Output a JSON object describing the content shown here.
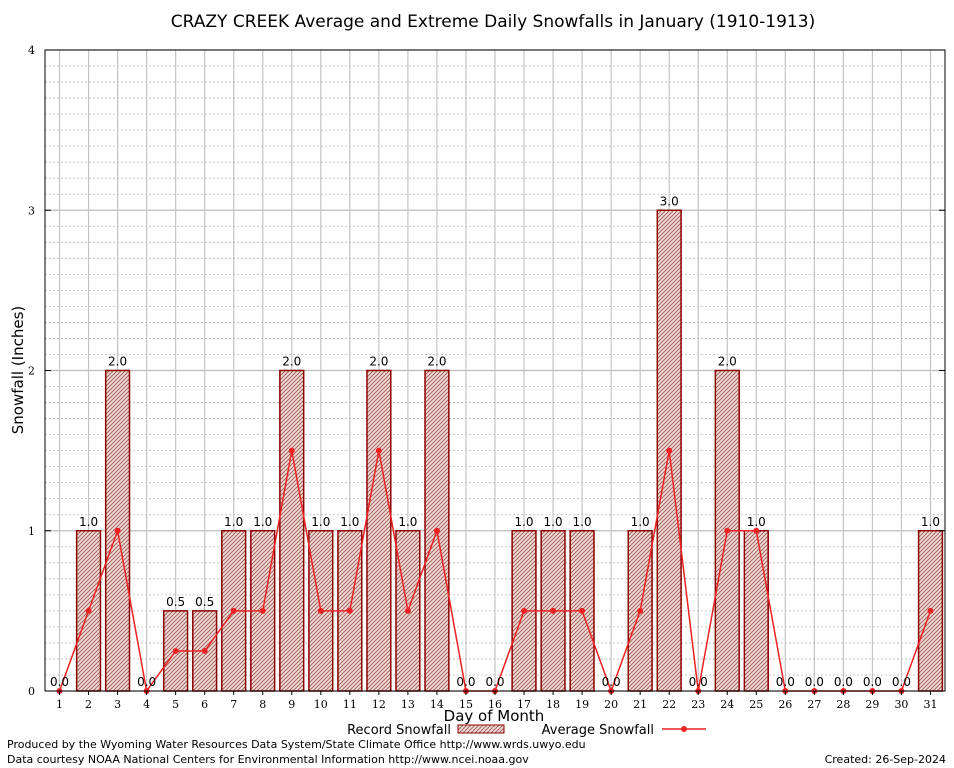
{
  "chart_data": {
    "type": "bar",
    "title": "CRAZY CREEK Average and Extreme Daily Snowfalls in January (1910-1913)",
    "xlabel": "Day of Month",
    "ylabel": "Snowfall (Inches)",
    "ylim": [
      0,
      4
    ],
    "yticks": [
      "0",
      "1",
      "2",
      "3",
      "4"
    ],
    "categories": [
      "1",
      "2",
      "3",
      "4",
      "5",
      "6",
      "7",
      "8",
      "9",
      "10",
      "11",
      "12",
      "13",
      "14",
      "15",
      "16",
      "17",
      "18",
      "19",
      "20",
      "21",
      "22",
      "23",
      "24",
      "25",
      "26",
      "27",
      "28",
      "29",
      "30",
      "31"
    ],
    "series": [
      {
        "name": "Record Snowfall",
        "kind": "bar",
        "color": "#8b0000",
        "values": [
          0,
          1,
          2,
          0,
          0.5,
          0.5,
          1,
          1,
          2,
          1,
          1,
          2,
          1,
          2,
          0,
          0,
          1,
          1,
          1,
          0,
          1,
          3,
          0,
          2,
          1,
          0,
          0,
          0,
          0,
          0,
          1
        ],
        "labels": [
          "0.0",
          "1.0",
          "2.0",
          "0.0",
          "0.5",
          "0.5",
          "1.0",
          "1.0",
          "2.0",
          "1.0",
          "1.0",
          "2.0",
          "1.0",
          "2.0",
          "0.0",
          "0.0",
          "1.0",
          "1.0",
          "1.0",
          "0.0",
          "1.0",
          "3.0",
          "0.0",
          "2.0",
          "1.0",
          "0.0",
          "0.0",
          "0.0",
          "0.0",
          "0.0",
          "1.0"
        ]
      },
      {
        "name": "Average Snowfall",
        "kind": "line",
        "color": "#ee2222",
        "values": [
          0,
          0.5,
          1,
          0,
          0.25,
          0.25,
          0.5,
          0.5,
          1.5,
          0.5,
          0.5,
          1.5,
          0.5,
          1,
          0,
          0,
          0.5,
          0.5,
          0.5,
          0,
          0.5,
          1.5,
          0,
          1,
          1,
          0,
          0,
          0,
          0,
          0,
          0.5
        ]
      }
    ],
    "grid": true,
    "legend_position": "bottom-center"
  },
  "footer": {
    "produced_by": "Produced by the Wyoming Water Resources Data System/State Climate Office http://www.wrds.uwyo.edu",
    "courtesy": "Data courtesy NOAA National Centers for Environmental Information http://www.ncei.noaa.gov",
    "created": "Created:  26-Sep-2024"
  }
}
